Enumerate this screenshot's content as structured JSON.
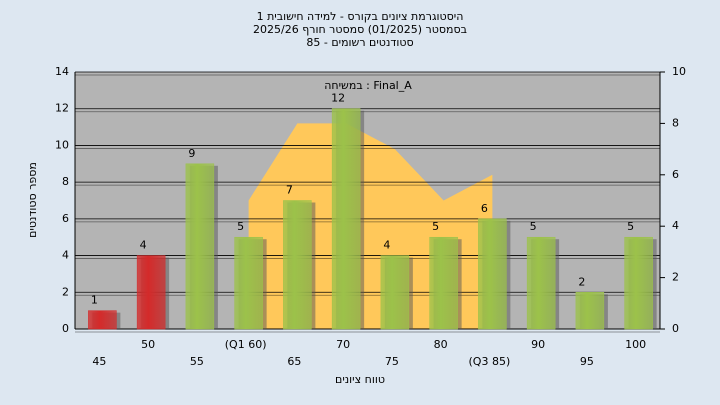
{
  "chart_data": {
    "type": "bar",
    "title": [
      "היסטוגרמת ציונים בקורס - למידה חישובית 1",
      "בסמסטר (01/2025) סמסטר חורף 2025/26",
      "סטודנטים רשומים - 85"
    ],
    "annotation": "במשיחה : Final_A",
    "ylabel": "מספר סטודנטים",
    "xlabel": "טווח ציונים",
    "categories": [
      "45",
      "50",
      "55",
      "(Q1 60)",
      "65",
      "70",
      "75",
      "80",
      "(Q3 85)",
      "90",
      "95",
      "100"
    ],
    "values": [
      1,
      4,
      9,
      5,
      7,
      12,
      4,
      5,
      6,
      5,
      2,
      5
    ],
    "colors": [
      "#d42a2a",
      "#d42a2a",
      "#9cc24a",
      "#9cc24a",
      "#9cc24a",
      "#9cc24a",
      "#9cc24a",
      "#9cc24a",
      "#9cc24a",
      "#9cc24a",
      "#9cc24a",
      "#9cc24a"
    ],
    "area": {
      "values": [
        null,
        null,
        null,
        5,
        8,
        8,
        7,
        5,
        6,
        null,
        null,
        null
      ],
      "axis": "y2",
      "color": "#ffc85a"
    },
    "ylim": [
      0,
      14
    ],
    "yticks": [
      0,
      2,
      4,
      6,
      8,
      10,
      12,
      14
    ],
    "y2lim": [
      0,
      10
    ],
    "y2ticks": [
      0,
      2,
      4,
      6,
      8,
      10
    ],
    "grid": true
  }
}
